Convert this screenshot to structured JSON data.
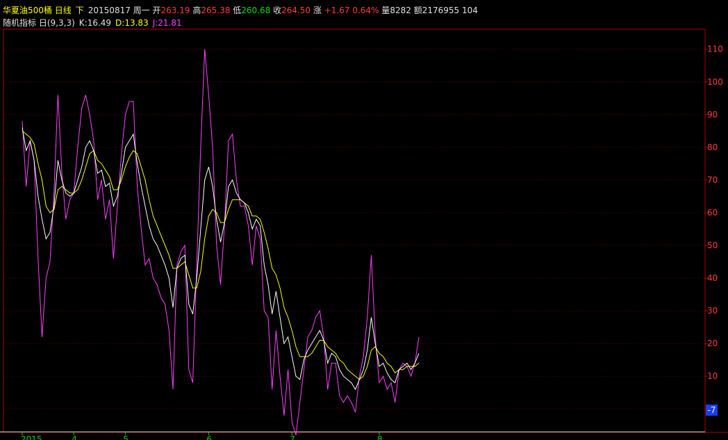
{
  "header": {
    "instrument": "华夏油500桶",
    "period": "日线",
    "direction": "下",
    "date": "20150817",
    "weekday": "周一",
    "open_label": "开",
    "open_value": "263.19",
    "high_label": "高",
    "high_value": "265.38",
    "low_label": "低",
    "low_value": "260.68",
    "close_label": "收",
    "close_value": "264.50",
    "change_label": "涨",
    "change_value": "+1.67",
    "change_pct": "0.64%",
    "volume_label": "量",
    "volume_value": "8282",
    "amount_label": "额",
    "amount_value": "2176955",
    "extra_value": "104"
  },
  "indicator": {
    "name": "随机指标",
    "period": "日",
    "params": "(9,3,3)",
    "k_label": "K:",
    "k_value": "16.49",
    "d_label": "D:",
    "d_value": "13.83",
    "j_label": "J:",
    "j_value": "21.81"
  },
  "colors": {
    "background": "#000000",
    "k_line": "#ffffff",
    "d_line": "#ffff00",
    "j_line": "#ff40ff",
    "axis": "#b00000",
    "tick_label": "#ff3c3c",
    "date_tick": "#00d000",
    "cursor_box": "#1c3cff"
  },
  "cursor_value": "-7",
  "chart_data": {
    "type": "line",
    "title": "",
    "xlabel": "",
    "ylabel": "",
    "ylim": [
      -10,
      113
    ],
    "y_ticks": [
      0,
      10,
      20,
      30,
      40,
      50,
      60,
      70,
      80,
      90,
      100,
      110
    ],
    "y_tick_labels": [
      "0",
      "10",
      "20",
      "30",
      "40",
      "50",
      "60",
      "70",
      "80",
      "90",
      "100",
      "110"
    ],
    "x_ticks": [
      {
        "index": 0,
        "label": "2015"
      },
      {
        "index": 13,
        "label": "4"
      },
      {
        "index": 26,
        "label": "5"
      },
      {
        "index": 47,
        "label": "6"
      },
      {
        "index": 68,
        "label": "7"
      },
      {
        "index": 90,
        "label": "8"
      }
    ],
    "horizontal_line": -7,
    "series": [
      {
        "name": "K",
        "values": [
          86,
          79,
          82,
          76,
          65,
          58,
          52,
          54,
          62,
          76,
          70,
          66,
          65,
          66,
          70,
          74,
          80,
          82,
          79,
          72,
          73,
          68,
          69,
          62,
          65,
          72,
          80,
          82,
          84,
          75,
          68,
          62,
          56,
          52,
          50,
          47,
          44,
          40,
          31,
          43,
          46,
          47,
          32,
          29,
          40,
          55,
          70,
          74,
          68,
          58,
          51,
          57,
          68,
          70,
          66,
          64,
          63,
          60,
          55,
          58,
          56,
          44,
          38,
          29,
          36,
          28,
          20,
          22,
          16,
          10,
          9,
          15,
          18,
          20,
          22,
          24,
          21,
          14,
          17,
          16,
          12,
          10,
          9,
          8,
          6,
          9,
          12,
          18,
          28,
          20,
          13,
          14,
          11,
          9,
          8,
          12,
          13,
          14,
          12,
          14,
          17
        ]
      },
      {
        "name": "D",
        "values": [
          85,
          84,
          83,
          81,
          75,
          70,
          62,
          60,
          61,
          67,
          68,
          67,
          66,
          66,
          67,
          70,
          74,
          78,
          79,
          76,
          75,
          73,
          71,
          67,
          67,
          70,
          74,
          77,
          79,
          78,
          74,
          70,
          64,
          59,
          56,
          53,
          50,
          47,
          43,
          43,
          44,
          45,
          41,
          37,
          37,
          42,
          52,
          59,
          61,
          60,
          57,
          57,
          61,
          64,
          64,
          64,
          63,
          62,
          59,
          59,
          58,
          54,
          49,
          43,
          41,
          37,
          31,
          28,
          24,
          19,
          16,
          16,
          16,
          17,
          19,
          21,
          21,
          19,
          18,
          17,
          15,
          14,
          12,
          11,
          10,
          9,
          10,
          13,
          18,
          19,
          17,
          16,
          14,
          13,
          11,
          12,
          12,
          13,
          13,
          13,
          14
        ]
      },
      {
        "name": "J",
        "values": [
          88,
          68,
          82,
          76,
          46,
          22,
          40,
          45,
          66,
          96,
          72,
          58,
          64,
          66,
          80,
          92,
          96,
          90,
          82,
          64,
          70,
          58,
          64,
          46,
          62,
          78,
          90,
          94,
          94,
          68,
          55,
          44,
          46,
          40,
          38,
          34,
          32,
          24,
          6,
          44,
          48,
          50,
          12,
          8,
          44,
          80,
          110,
          96,
          80,
          50,
          38,
          56,
          82,
          84,
          70,
          62,
          62,
          56,
          44,
          56,
          52,
          30,
          28,
          6,
          24,
          10,
          -2,
          12,
          -4,
          -8,
          2,
          12,
          22,
          24,
          28,
          30,
          22,
          6,
          14,
          14,
          4,
          2,
          4,
          2,
          -1,
          10,
          16,
          28,
          47,
          22,
          8,
          10,
          6,
          8,
          2,
          12,
          14,
          13,
          10,
          14,
          22
        ]
      }
    ]
  }
}
